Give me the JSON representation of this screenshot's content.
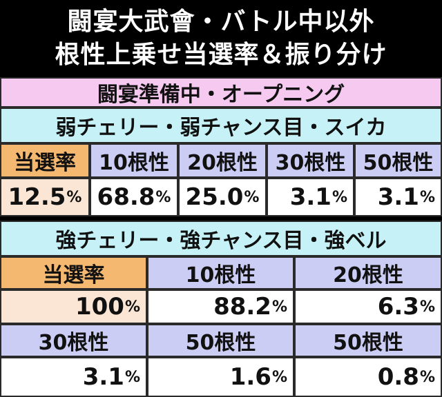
{
  "title": {
    "line1": "闘宴大武會・バトル中以外",
    "line2": "根性上乗せ当選率＆振り分け"
  },
  "section_header": "闘宴準備中・オープニング",
  "table1": {
    "caption": "弱チェリー・弱チャンス目・スイカ",
    "headers": [
      "当選率",
      "10根性",
      "20根性",
      "30根性",
      "50根性"
    ],
    "values": [
      "12.5",
      "68.8",
      "25.0",
      "3.1",
      "3.1"
    ],
    "unit": "%"
  },
  "table2": {
    "caption": "強チェリー・強チャンス目・強ベル",
    "row1_headers": [
      "当選率",
      "10根性",
      "20根性"
    ],
    "row1_values": [
      "100",
      "88.2",
      "6.3"
    ],
    "row2_headers": [
      "30根性",
      "50根性",
      "50根性"
    ],
    "row2_values": [
      "3.1",
      "1.6",
      "0.8"
    ],
    "unit": "%"
  },
  "colors": {
    "pink_band": "#f6c9f0",
    "cyan_band": "#c6f2f7",
    "orange_header": "#f5b870",
    "lavender_header": "#cbcdf4",
    "peach_value": "#fbe6d5"
  }
}
